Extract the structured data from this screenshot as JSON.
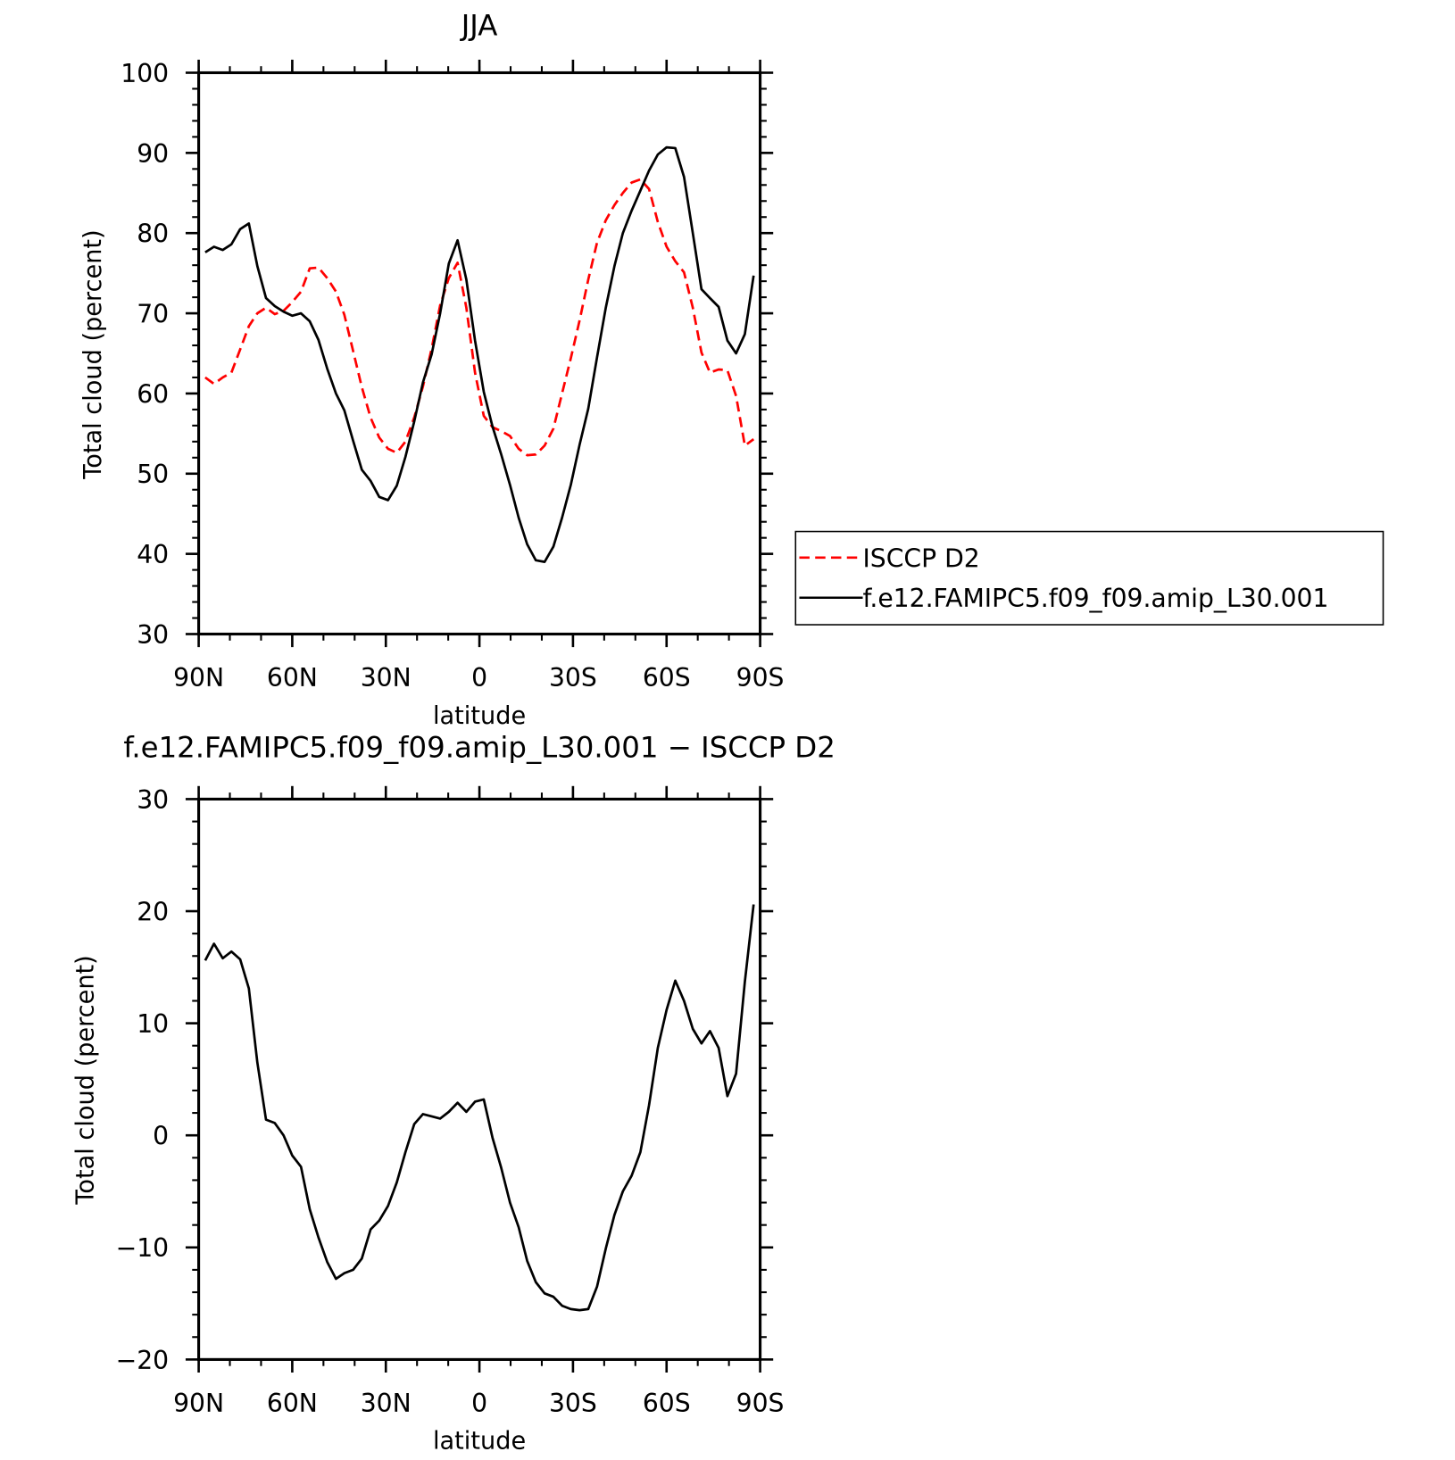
{
  "chart_data": [
    {
      "type": "line",
      "title": "JJA",
      "xlabel": "latitude",
      "ylabel": "Total cloud (percent)",
      "xlim": [
        90,
        -90
      ],
      "ylim": [
        30,
        100
      ],
      "xticks": [
        90,
        60,
        30,
        0,
        -30,
        -60,
        -90
      ],
      "xtick_labels": [
        "90N",
        "60N",
        "30N",
        "0",
        "30S",
        "60S",
        "90S"
      ],
      "yticks": [
        30,
        40,
        50,
        60,
        70,
        80,
        90,
        100
      ],
      "ytick_labels": [
        "30",
        "40",
        "50",
        "60",
        "70",
        "80",
        "90",
        "100"
      ],
      "grid": false,
      "legend_placement": "right",
      "latitude": [
        87.9,
        85.1,
        82.3,
        79.5,
        76.7,
        73.9,
        71.2,
        68.4,
        65.6,
        62.8,
        60.0,
        57.2,
        54.4,
        51.6,
        48.8,
        46.0,
        43.3,
        40.5,
        37.7,
        34.9,
        32.1,
        29.3,
        26.5,
        23.7,
        20.9,
        18.1,
        15.3,
        12.6,
        9.8,
        7.0,
        4.2,
        1.4,
        -1.4,
        -4.2,
        -7.0,
        -9.8,
        -12.6,
        -15.3,
        -18.1,
        -20.9,
        -23.7,
        -26.5,
        -29.3,
        -32.1,
        -34.9,
        -37.7,
        -40.5,
        -43.3,
        -46.0,
        -48.8,
        -51.6,
        -54.4,
        -57.2,
        -60.0,
        -62.8,
        -65.6,
        -68.4,
        -71.2,
        -73.9,
        -76.7,
        -79.5,
        -82.3,
        -85.1,
        -87.9
      ],
      "series": [
        {
          "name": "ISCCP D2",
          "color": "#ff0000",
          "dash": "dashed",
          "values": [
            62.0,
            61.2,
            62.0,
            62.6,
            65.5,
            68.4,
            70.0,
            70.7,
            69.9,
            70.3,
            71.4,
            72.7,
            75.6,
            75.7,
            74.4,
            72.7,
            69.8,
            65.3,
            60.8,
            57.0,
            54.5,
            53.1,
            52.6,
            54.0,
            57.0,
            60.9,
            65.6,
            71.0,
            74.4,
            76.3,
            70.7,
            62.6,
            57.2,
            55.8,
            55.3,
            54.7,
            53.1,
            52.3,
            52.4,
            53.5,
            55.6,
            60.0,
            64.4,
            69.1,
            74.2,
            78.8,
            81.6,
            83.5,
            85.0,
            86.3,
            86.7,
            85.5,
            81.4,
            78.3,
            76.5,
            75.1,
            70.7,
            65.1,
            62.6,
            63.0,
            62.9,
            59.7,
            53.5,
            54.3
          ]
        },
        {
          "name": "f.e12.FAMIPC5.f09_f09.amip_L30.001",
          "color": "#000000",
          "dash": "solid",
          "values": [
            77.6,
            78.3,
            77.9,
            78.6,
            80.5,
            81.2,
            75.9,
            71.9,
            70.9,
            70.2,
            69.7,
            70.0,
            69.0,
            66.7,
            63.1,
            60.0,
            57.9,
            54.1,
            50.5,
            49.1,
            47.1,
            46.7,
            48.5,
            52.1,
            56.5,
            61.4,
            64.9,
            70.0,
            76.2,
            79.1,
            74.2,
            66.6,
            60.2,
            55.9,
            52.4,
            48.6,
            44.5,
            41.2,
            39.2,
            39.0,
            40.9,
            44.5,
            48.6,
            53.6,
            58.1,
            64.5,
            70.7,
            75.9,
            80.0,
            82.8,
            85.3,
            87.8,
            89.8,
            90.7,
            90.6,
            87.0,
            80.0,
            73.0,
            71.9,
            70.8,
            66.6,
            65.0,
            67.4,
            74.7
          ]
        }
      ]
    },
    {
      "type": "line",
      "title": "f.e12.FAMIPC5.f09_f09.amip_L30.001 − ISCCP D2",
      "xlabel": "latitude",
      "ylabel": "Total cloud (percent)",
      "xlim": [
        90,
        -90
      ],
      "ylim": [
        -20,
        30
      ],
      "xticks": [
        90,
        60,
        30,
        0,
        -30,
        -60,
        -90
      ],
      "xtick_labels": [
        "90N",
        "60N",
        "30N",
        "0",
        "30S",
        "60S",
        "90S"
      ],
      "yticks": [
        -20,
        -10,
        0,
        10,
        20,
        30
      ],
      "ytick_labels": [
        "−20",
        "−10",
        "0",
        "10",
        "20",
        "30"
      ],
      "grid": false,
      "series": [
        {
          "color": "#000000",
          "dash": "solid",
          "values": [
            15.6,
            17.1,
            15.8,
            16.4,
            15.7,
            13.1,
            6.5,
            1.4,
            1.1,
            0.0,
            -1.8,
            -2.8,
            -6.6,
            -9.1,
            -11.3,
            -12.8,
            -12.3,
            -12.0,
            -11.0,
            -8.4,
            -7.6,
            -6.3,
            -4.2,
            -1.5,
            1.0,
            1.9,
            1.7,
            1.5,
            2.1,
            2.9,
            2.1,
            3.0,
            3.2,
            -0.2,
            -2.9,
            -6.0,
            -8.2,
            -11.2,
            -13.1,
            -14.1,
            -14.4,
            -15.2,
            -15.5,
            -15.6,
            -15.5,
            -13.5,
            -10.1,
            -7.1,
            -5.0,
            -3.6,
            -1.5,
            2.7,
            7.8,
            11.2,
            13.8,
            12.0,
            9.5,
            8.2,
            9.3,
            7.8,
            3.5,
            5.5,
            13.7,
            20.6
          ]
        }
      ]
    }
  ]
}
